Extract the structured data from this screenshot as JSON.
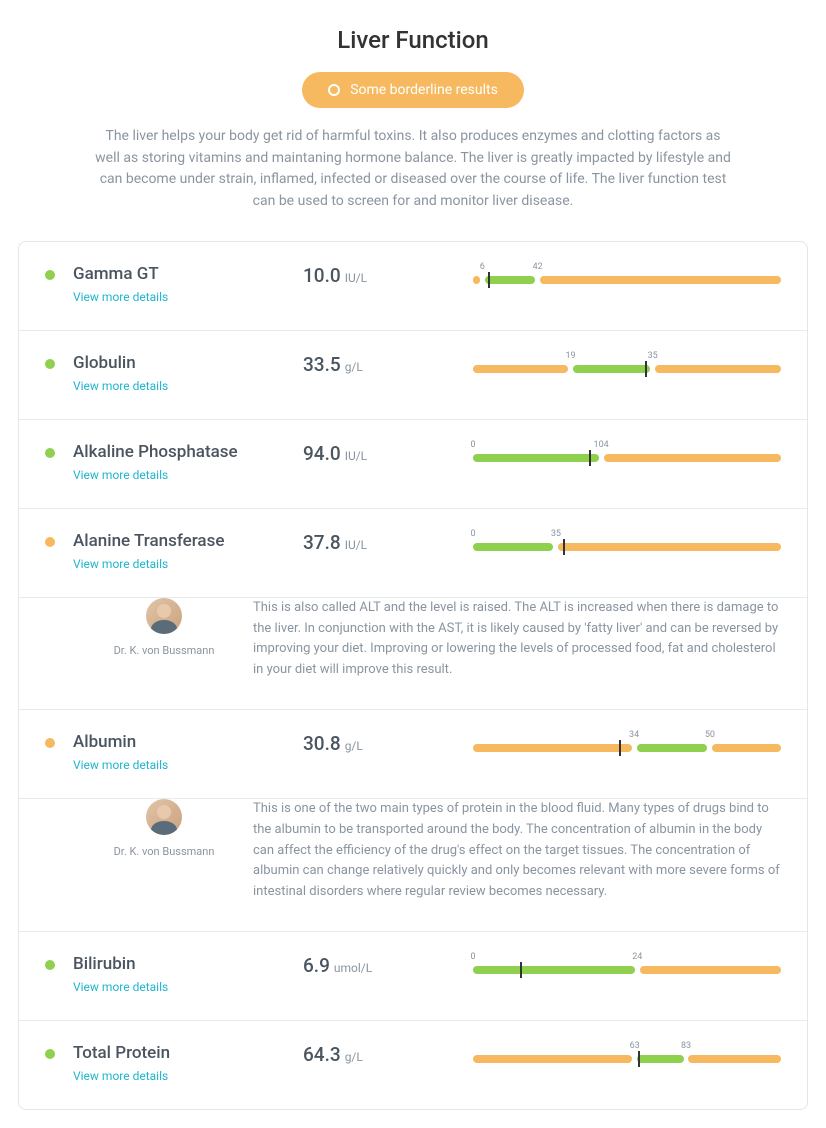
{
  "title": "Liver Function",
  "status": {
    "label": "Some borderline results",
    "bg": "#f6b95f"
  },
  "description": "The liver helps your body get rid of harmful toxins. It also produces enzymes and clotting factors as well as storing vitamins and maintaning hormone balance. The liver is greatly impacted by lifestyle and can become under strain, inflamed, infected or diseased over the course of life. The liver function test can be used to screen for and monitor liver disease.",
  "details_label": "View more details",
  "colors": {
    "green": "#8fd04f",
    "orange": "#f6b95f",
    "link": "#1fb5ce",
    "text_muted": "#8a94a0"
  },
  "doctor": {
    "name": "Dr. K. von Bussmann"
  },
  "tests": [
    {
      "name": "Gamma GT",
      "value": "10.0",
      "unit": "IU/L",
      "status": "green",
      "bar": {
        "min": 0,
        "max": 200,
        "normal_lo": 6,
        "normal_hi": 42,
        "marker": 10,
        "ticks": [
          6,
          42
        ]
      }
    },
    {
      "name": "Globulin",
      "value": "33.5",
      "unit": "g/L",
      "status": "green",
      "bar": {
        "min": 0,
        "max": 60,
        "normal_lo": 19,
        "normal_hi": 35,
        "marker": 33.5,
        "ticks": [
          19,
          35
        ]
      }
    },
    {
      "name": "Alkaline Phosphatase",
      "value": "94.0",
      "unit": "IU/L",
      "status": "green",
      "bar": {
        "min": 0,
        "max": 250,
        "normal_lo": 0,
        "normal_hi": 104,
        "marker": 94,
        "ticks": [
          0,
          104
        ]
      }
    },
    {
      "name": "Alanine Transferase",
      "value": "37.8",
      "unit": "IU/L",
      "status": "orange",
      "bar": {
        "min": 0,
        "max": 130,
        "normal_lo": 0,
        "normal_hi": 35,
        "marker": 37.8,
        "ticks": [
          0,
          35
        ]
      },
      "note": "This is also called ALT and the level is raised. The ALT is increased when there is damage to the liver. In conjunction with the AST, it is likely caused by 'fatty liver' and can be reversed by improving your diet. Improving or lowering the levels of processed food, fat and cholesterol in your diet will improve this result."
    },
    {
      "name": "Albumin",
      "value": "30.8",
      "unit": "g/L",
      "status": "orange",
      "bar": {
        "min": 0,
        "max": 65,
        "normal_lo": 34,
        "normal_hi": 50,
        "marker": 30.8,
        "ticks": [
          34,
          50
        ]
      },
      "note": "This is one of the two main types of protein in the blood fluid. Many types of drugs bind to the albumin to be transported around the body. The concentration of albumin in the body can affect the efficiency of the drug's effect on the target tissues. The concentration of albumin can change relatively quickly and only becomes relevant with more severe forms of intestinal disorders where regular review becomes necessary."
    },
    {
      "name": "Bilirubin",
      "value": "6.9",
      "unit": "umol/L",
      "status": "green",
      "bar": {
        "min": 0,
        "max": 45,
        "normal_lo": 0,
        "normal_hi": 24,
        "marker": 6.9,
        "ticks": [
          0,
          24
        ]
      }
    },
    {
      "name": "Total Protein",
      "value": "64.3",
      "unit": "g/L",
      "status": "green",
      "bar": {
        "min": 0,
        "max": 120,
        "normal_lo": 63,
        "normal_hi": 83,
        "marker": 64.3,
        "ticks": [
          63,
          83
        ]
      }
    }
  ]
}
